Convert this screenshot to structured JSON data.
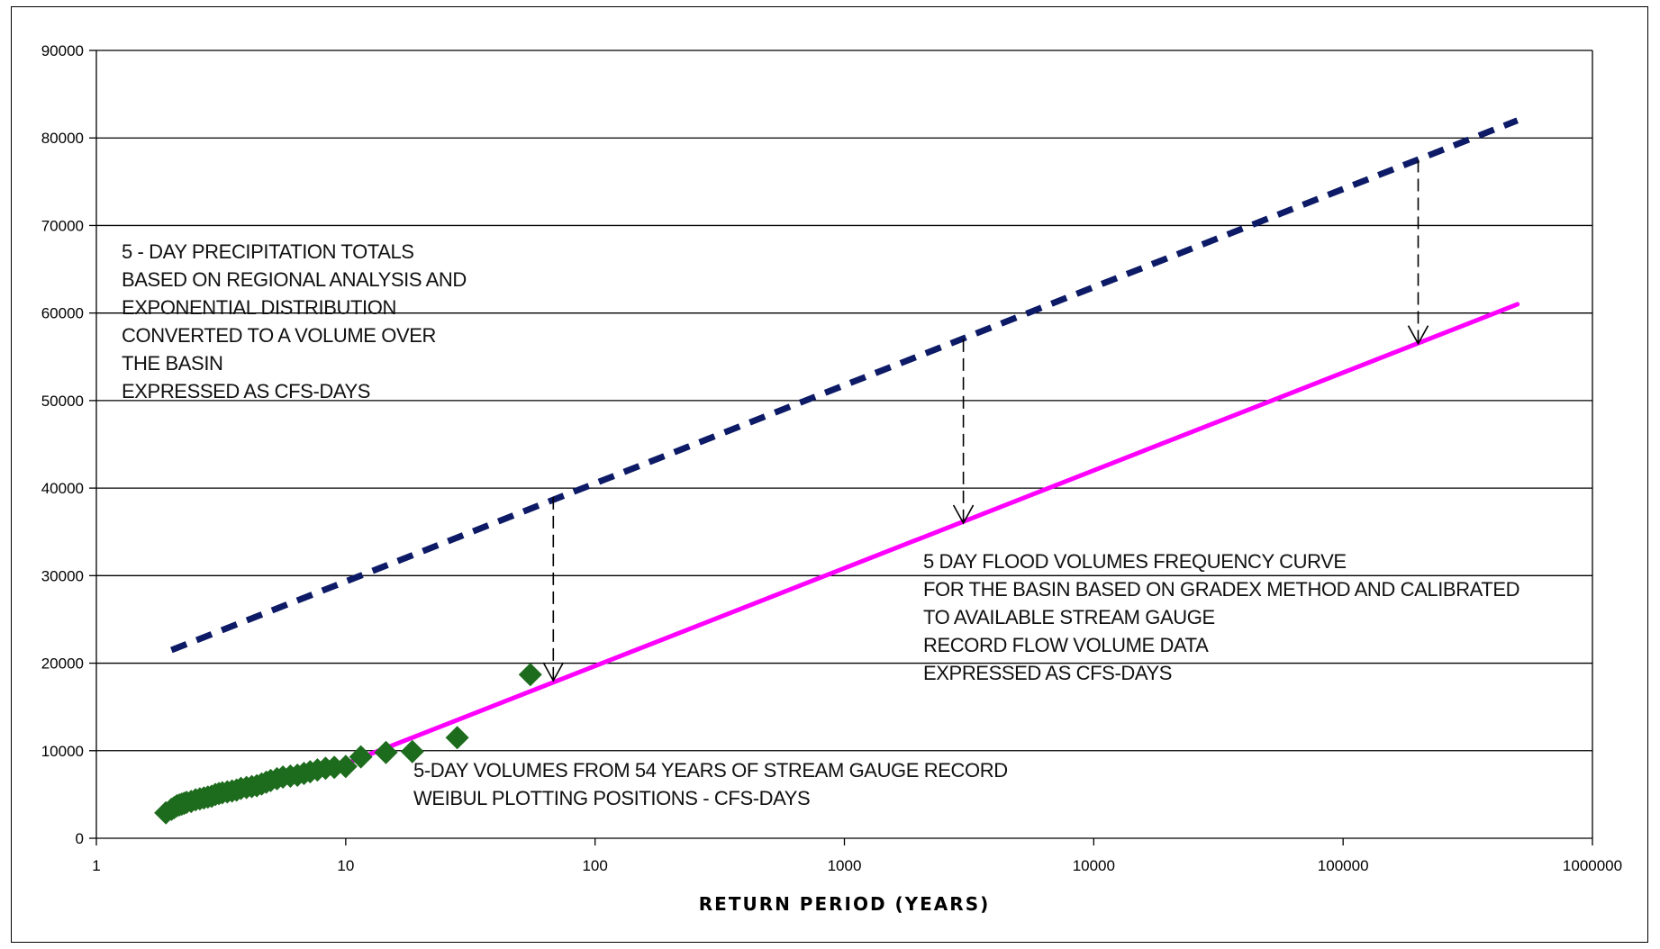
{
  "chart_data": {
    "type": "scatter",
    "title": "",
    "xlabel": "RETURN PERIOD (YEARS)",
    "ylabel": "",
    "x_scale": "log",
    "xlim": [
      1,
      1000000
    ],
    "ylim": [
      0,
      90000
    ],
    "x_ticks": [
      1,
      10,
      100,
      1000,
      10000,
      100000,
      1000000
    ],
    "x_tick_labels": [
      "1",
      "10",
      "100",
      "1000",
      "10000",
      "100000",
      "1000000"
    ],
    "y_ticks": [
      0,
      10000,
      20000,
      30000,
      40000,
      50000,
      60000,
      70000,
      80000,
      90000
    ],
    "y_tick_labels": [
      "0",
      "10000",
      "20000",
      "30000",
      "40000",
      "50000",
      "60000",
      "70000",
      "80000",
      "90000"
    ],
    "grid": "horizontal",
    "legend": "none",
    "series": [
      {
        "style": "dashed-line",
        "color": "#0d1a66",
        "x": [
          2,
          500000
        ],
        "y": [
          21500,
          82000
        ]
      },
      {
        "style": "solid-line",
        "color": "#ff00ff",
        "x": [
          9,
          500000
        ],
        "y": [
          8000,
          61000
        ]
      },
      {
        "style": "diamond-markers",
        "color": "#1d6b1d",
        "x": [
          1.9,
          2.0,
          2.05,
          2.1,
          2.15,
          2.2,
          2.25,
          2.3,
          2.4,
          2.5,
          2.6,
          2.7,
          2.8,
          2.9,
          3.0,
          3.1,
          3.2,
          3.35,
          3.5,
          3.65,
          3.8,
          4.0,
          4.2,
          4.4,
          4.6,
          4.8,
          5.0,
          5.3,
          5.6,
          6.0,
          6.4,
          6.8,
          7.2,
          7.7,
          8.3,
          9.0,
          10.0,
          11.5,
          14.5,
          18.5,
          28.0,
          55.0
        ],
        "y": [
          2900,
          3300,
          3500,
          3700,
          3800,
          3900,
          4000,
          4100,
          4200,
          4400,
          4500,
          4600,
          4700,
          4800,
          5000,
          5100,
          5200,
          5300,
          5400,
          5500,
          5700,
          5800,
          5900,
          6000,
          6200,
          6400,
          6600,
          6800,
          7000,
          7100,
          7200,
          7400,
          7600,
          7800,
          8000,
          8100,
          8200,
          9300,
          9800,
          9900,
          11500,
          18700
        ]
      }
    ],
    "arrows": [
      {
        "x": 68,
        "y_from": 39000,
        "y_to": 18000
      },
      {
        "x": 3000,
        "y_from": 57000,
        "y_to": 36000
      },
      {
        "x": 200000,
        "y_from": 77500,
        "y_to": 56500
      }
    ],
    "annotations": {
      "precipitation": [
        "5 - DAY PRECIPITATION TOTALS",
        "BASED ON REGIONAL ANALYSIS AND",
        "EXPONENTIAL DISTRIBUTION",
        "CONVERTED TO A VOLUME OVER",
        "THE BASIN",
        "EXPRESSED AS  CFS-DAYS"
      ],
      "flood_curve": [
        "5 DAY FLOOD VOLUMES FREQUENCY CURVE",
        "FOR THE BASIN BASED ON GRADEX METHOD AND CALIBRATED",
        "TO AVAILABLE  STREAM GAUGE",
        "RECORD FLOW VOLUME DATA",
        "EXPRESSED AS CFS-DAYS"
      ],
      "gauge": [
        "5-DAY VOLUMES FROM 54 YEARS OF STREAM GAUGE RECORD",
        " WEIBUL PLOTTING POSITIONS -  CFS-DAYS"
      ]
    }
  }
}
